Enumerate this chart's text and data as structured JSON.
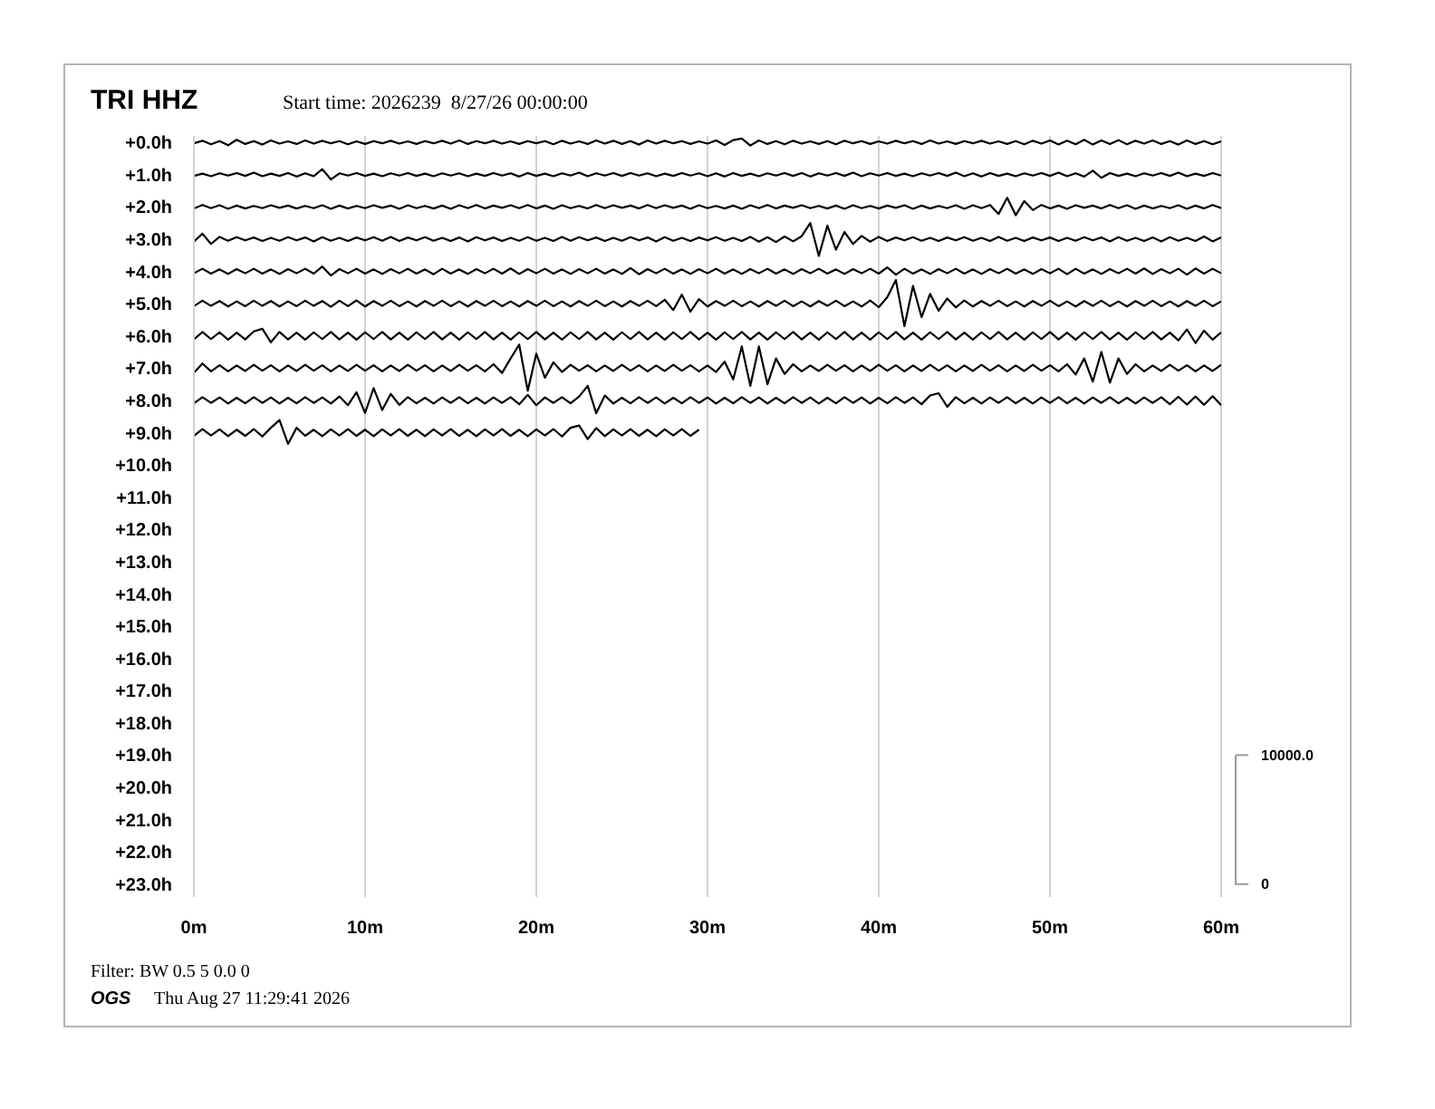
{
  "chart_data": {
    "type": "line",
    "title": "TRI HHZ",
    "subtitle": "Start time: 2026239  8/27/26 00:00:00",
    "annotations": [
      "Filter: BW 0.5 5 0.0 0",
      "OGS",
      "Thu Aug 27 11:29:41 2026"
    ],
    "x": [
      0,
      0.5,
      1,
      1.5,
      2,
      2.5,
      3,
      3.5,
      4,
      4.5,
      5,
      5.5,
      6,
      6.5,
      7,
      7.5,
      8,
      8.5,
      9,
      9.5,
      10,
      10.5,
      11,
      11.5,
      12,
      12.5,
      13,
      13.5,
      14,
      14.5,
      15,
      15.5,
      16,
      16.5,
      17,
      17.5,
      18,
      18.5,
      19,
      19.5,
      20,
      20.5,
      21,
      21.5,
      22,
      22.5,
      23,
      23.5,
      24,
      24.5,
      25,
      25.5,
      26,
      26.5,
      27,
      27.5,
      28,
      28.5,
      29,
      29.5,
      30,
      30.5,
      31,
      31.5,
      32,
      32.5,
      33,
      33.5,
      34,
      34.5,
      35,
      35.5,
      36,
      36.5,
      37,
      37.5,
      38,
      38.5,
      39,
      39.5,
      40,
      40.5,
      41,
      41.5,
      42,
      42.5,
      43,
      43.5,
      44,
      44.5,
      45,
      45.5,
      46,
      46.5,
      47,
      47.5,
      48,
      48.5,
      49,
      49.5,
      50,
      50.5,
      51,
      51.5,
      52,
      52.5,
      53,
      53.5,
      54,
      54.5,
      55,
      55.5,
      56,
      56.5,
      57,
      57.5,
      58,
      58.5,
      59,
      59.5,
      60
    ],
    "series": [
      {
        "color": "#000000",
        "values": [
          0.03,
          -0.05,
          0.06,
          -0.04,
          0.09,
          -0.08,
          0.05,
          -0.04,
          0.07,
          -0.06,
          0.04,
          -0.03,
          0.05,
          -0.06,
          0.04,
          -0.05,
          0.03,
          -0.04,
          0.06,
          -0.03,
          0.05,
          -0.04,
          0.03,
          -0.05,
          0.04,
          -0.03,
          0.05,
          -0.04,
          0.03,
          -0.05,
          0.04,
          -0.06,
          0.05,
          -0.04,
          0.03,
          -0.05,
          0.04,
          -0.03,
          0.05,
          -0.04,
          0.03,
          -0.04,
          0.06,
          -0.05,
          0.04,
          -0.03,
          0.05,
          -0.06,
          0.04,
          -0.05,
          0.05,
          -0.04,
          0.07,
          -0.06,
          0.04,
          -0.05,
          0.03,
          -0.04,
          0.05,
          -0.03,
          0.04,
          -0.06,
          0.08,
          -0.07,
          -0.12,
          0.1,
          -0.06,
          0.05,
          -0.04,
          0.06,
          -0.05,
          0.04,
          -0.03,
          0.05,
          -0.04,
          0.06,
          -0.05,
          0.03,
          -0.04,
          0.05,
          -0.03,
          0.04,
          -0.05,
          0.03,
          -0.04,
          0.05,
          -0.06,
          0.04,
          -0.03,
          0.05,
          -0.04,
          0.03,
          -0.05,
          0.04,
          -0.03,
          0.05,
          -0.04,
          0.06,
          -0.05,
          0.04,
          -0.06,
          0.07,
          -0.05,
          0.06,
          -0.08,
          0.07,
          -0.06,
          0.05,
          -0.07,
          0.06,
          -0.05,
          0.04,
          -0.06,
          0.05,
          -0.04,
          0.07,
          -0.06,
          0.05,
          -0.04,
          0.06,
          -0.03
        ]
      },
      {
        "color": "#000000",
        "values": [
          1.04,
          0.97,
          1.05,
          0.96,
          1.03,
          0.95,
          1.04,
          0.94,
          1.05,
          0.97,
          1.04,
          0.95,
          1.06,
          0.96,
          1.05,
          0.83,
          1.15,
          0.96,
          1.03,
          0.95,
          1.04,
          0.97,
          1.05,
          0.96,
          1.03,
          0.95,
          1.04,
          0.97,
          1.05,
          0.96,
          1.03,
          0.96,
          1.05,
          0.97,
          1.04,
          0.95,
          1.03,
          0.96,
          1.06,
          0.95,
          1.04,
          0.97,
          1.05,
          0.96,
          1.03,
          0.94,
          1.05,
          0.96,
          1.03,
          0.95,
          1.04,
          0.95,
          1.03,
          0.96,
          1.05,
          0.97,
          1.04,
          0.95,
          1.03,
          0.96,
          1.05,
          0.96,
          1.06,
          0.95,
          1.04,
          0.97,
          1.05,
          0.96,
          1.03,
          0.95,
          1.04,
          0.95,
          1.06,
          0.96,
          1.03,
          0.95,
          1.04,
          0.94,
          1.05,
          0.96,
          1.03,
          0.95,
          1.04,
          0.97,
          1.05,
          0.96,
          1.03,
          0.95,
          1.04,
          0.94,
          1.05,
          0.96,
          1.06,
          0.95,
          1.04,
          0.97,
          1.05,
          0.96,
          1.03,
          0.95,
          1.04,
          0.94,
          1.05,
          0.96,
          1.06,
          0.88,
          1.1,
          0.95,
          1.04,
          0.97,
          1.05,
          0.96,
          1.03,
          0.95,
          1.04,
          0.94,
          1.05,
          0.97,
          1.04,
          0.95,
          1.03
        ]
      },
      {
        "color": "#000000",
        "values": [
          2.05,
          1.94,
          2.04,
          1.95,
          2.06,
          1.96,
          2.05,
          1.97,
          2.04,
          1.95,
          2.03,
          1.96,
          2.05,
          1.97,
          2.04,
          1.95,
          2.06,
          1.96,
          2.05,
          1.97,
          2.04,
          1.95,
          2.03,
          1.96,
          2.06,
          1.95,
          2.04,
          1.97,
          2.05,
          1.96,
          2.06,
          1.95,
          2.04,
          1.94,
          2.05,
          1.96,
          2.03,
          1.95,
          2.04,
          1.94,
          2.05,
          1.96,
          2.06,
          1.95,
          2.04,
          1.97,
          2.05,
          1.94,
          2.04,
          1.95,
          2.03,
          1.96,
          2.05,
          1.94,
          2.04,
          1.95,
          2.03,
          1.96,
          2.06,
          1.95,
          2.04,
          1.97,
          2.05,
          1.96,
          2.06,
          1.95,
          2.04,
          1.94,
          2.05,
          1.96,
          2.03,
          1.95,
          2.04,
          1.97,
          2.05,
          1.96,
          2.06,
          1.95,
          2.04,
          1.97,
          2.05,
          1.96,
          2.03,
          1.95,
          2.06,
          1.96,
          2.05,
          1.97,
          2.04,
          1.95,
          2.06,
          1.95,
          2.04,
          1.94,
          2.22,
          1.72,
          2.26,
          1.82,
          2.1,
          1.94,
          2.05,
          1.96,
          2.06,
          1.95,
          2.03,
          1.96,
          2.05,
          1.94,
          2.04,
          1.95,
          2.06,
          1.96,
          2.05,
          1.97,
          2.04,
          1.95,
          2.06,
          1.96,
          2.05,
          1.94,
          2.04
        ]
      },
      {
        "color": "#000000",
        "values": [
          3.08,
          2.83,
          3.15,
          2.93,
          3.05,
          2.94,
          3.04,
          2.95,
          3.06,
          2.96,
          3.05,
          2.94,
          3.04,
          2.95,
          3.07,
          2.94,
          3.05,
          2.96,
          3.06,
          2.95,
          3.04,
          2.94,
          3.05,
          2.93,
          3.06,
          2.95,
          3.04,
          2.94,
          3.05,
          2.96,
          3.06,
          2.95,
          3.07,
          2.94,
          3.04,
          2.95,
          3.06,
          2.96,
          3.05,
          2.94,
          3.05,
          2.96,
          3.06,
          2.93,
          3.05,
          2.94,
          3.04,
          2.95,
          3.06,
          2.96,
          3.05,
          2.94,
          3.04,
          2.95,
          3.07,
          2.94,
          3.05,
          2.96,
          3.06,
          2.95,
          3.04,
          2.94,
          3.05,
          2.96,
          3.06,
          2.93,
          3.08,
          2.94,
          3.09,
          2.92,
          3.07,
          2.91,
          2.5,
          3.52,
          2.58,
          3.33,
          2.78,
          3.15,
          2.9,
          3.08,
          2.93,
          3.06,
          2.95,
          3.04,
          2.94,
          3.05,
          2.96,
          3.06,
          2.95,
          3.04,
          2.94,
          3.05,
          2.96,
          3.06,
          2.93,
          3.05,
          2.96,
          3.06,
          2.95,
          3.04,
          2.95,
          3.06,
          2.96,
          3.05,
          2.94,
          3.04,
          2.95,
          3.07,
          2.94,
          3.05,
          2.96,
          3.06,
          2.95,
          3.07,
          2.94,
          3.05,
          2.96,
          3.06,
          2.92,
          3.07,
          2.95
        ]
      },
      {
        "color": "#000000",
        "values": [
          4.06,
          3.92,
          4.07,
          3.94,
          4.08,
          3.93,
          4.06,
          3.92,
          4.07,
          3.94,
          4.08,
          3.93,
          4.06,
          3.92,
          4.07,
          3.85,
          4.13,
          3.93,
          4.06,
          3.92,
          4.07,
          3.94,
          4.08,
          3.93,
          4.06,
          3.92,
          4.07,
          3.94,
          4.09,
          3.92,
          4.07,
          3.94,
          4.08,
          3.93,
          4.06,
          3.92,
          4.07,
          3.91,
          4.08,
          3.93,
          4.06,
          3.92,
          4.07,
          3.94,
          4.08,
          3.93,
          4.06,
          3.92,
          4.07,
          3.94,
          4.08,
          3.9,
          4.09,
          3.93,
          4.06,
          3.92,
          4.07,
          3.94,
          4.08,
          3.93,
          4.06,
          3.92,
          4.07,
          3.94,
          4.08,
          3.93,
          4.06,
          3.92,
          4.07,
          3.94,
          4.08,
          3.93,
          4.06,
          3.92,
          4.07,
          3.94,
          4.08,
          3.93,
          4.06,
          3.92,
          4.07,
          3.88,
          4.1,
          3.92,
          4.07,
          3.94,
          4.08,
          3.93,
          4.06,
          3.92,
          4.07,
          3.94,
          4.08,
          3.93,
          4.06,
          3.92,
          4.07,
          3.94,
          4.08,
          3.93,
          4.06,
          3.92,
          4.09,
          3.92,
          4.07,
          3.94,
          4.08,
          3.93,
          4.06,
          3.92,
          4.07,
          3.91,
          4.08,
          3.93,
          4.06,
          3.92,
          4.1,
          3.91,
          4.07,
          3.92,
          4.06
        ]
      },
      {
        "color": "#000000",
        "values": [
          5.08,
          4.91,
          5.07,
          4.92,
          5.09,
          4.93,
          5.08,
          4.91,
          5.07,
          4.92,
          5.09,
          4.93,
          5.08,
          4.91,
          5.07,
          4.92,
          5.1,
          4.91,
          5.08,
          4.9,
          5.09,
          4.92,
          5.07,
          4.91,
          5.08,
          4.93,
          5.09,
          4.92,
          5.07,
          4.91,
          5.08,
          4.93,
          5.09,
          4.92,
          5.07,
          4.91,
          5.08,
          4.93,
          5.09,
          4.92,
          5.07,
          4.91,
          5.08,
          4.93,
          5.09,
          4.92,
          5.07,
          4.91,
          5.08,
          4.93,
          5.09,
          4.92,
          5.07,
          4.91,
          5.08,
          4.88,
          5.2,
          4.72,
          5.25,
          4.86,
          5.09,
          4.92,
          5.07,
          4.91,
          5.08,
          4.93,
          5.09,
          4.92,
          5.07,
          4.91,
          5.08,
          4.93,
          5.09,
          4.92,
          5.07,
          4.91,
          5.08,
          4.93,
          5.09,
          4.9,
          5.11,
          4.8,
          4.27,
          5.7,
          4.45,
          5.42,
          4.7,
          5.22,
          4.84,
          5.12,
          4.9,
          5.09,
          4.92,
          5.07,
          4.91,
          5.08,
          4.93,
          5.09,
          4.92,
          5.07,
          4.91,
          5.08,
          4.93,
          5.09,
          4.92,
          5.07,
          4.91,
          5.08,
          4.93,
          5.09,
          4.92,
          5.07,
          4.91,
          5.08,
          4.93,
          5.09,
          4.92,
          5.07,
          4.91,
          5.08,
          4.93
        ]
      },
      {
        "color": "#000000",
        "values": [
          6.11,
          5.88,
          6.1,
          5.89,
          6.12,
          5.9,
          6.11,
          5.86,
          5.78,
          6.2,
          5.88,
          6.11,
          5.9,
          6.12,
          5.89,
          6.1,
          5.88,
          6.11,
          5.9,
          6.12,
          5.89,
          6.1,
          5.88,
          6.11,
          5.9,
          6.12,
          5.89,
          6.1,
          5.88,
          6.11,
          5.9,
          6.12,
          5.89,
          6.1,
          5.88,
          6.11,
          5.9,
          6.12,
          5.89,
          6.1,
          5.88,
          6.11,
          5.9,
          6.12,
          5.89,
          6.1,
          5.88,
          6.11,
          5.9,
          6.12,
          5.89,
          6.1,
          5.88,
          6.11,
          5.9,
          6.12,
          5.89,
          6.1,
          5.88,
          6.11,
          5.9,
          6.12,
          5.89,
          6.1,
          5.88,
          6.11,
          5.9,
          6.12,
          5.89,
          6.1,
          5.88,
          6.11,
          5.9,
          6.12,
          5.89,
          6.1,
          5.88,
          6.11,
          5.9,
          6.12,
          5.89,
          6.1,
          5.88,
          6.11,
          5.9,
          6.12,
          5.89,
          6.1,
          5.88,
          6.11,
          5.9,
          6.12,
          5.89,
          6.1,
          5.88,
          6.11,
          5.9,
          6.12,
          5.89,
          6.1,
          5.88,
          6.11,
          5.9,
          6.12,
          5.89,
          6.1,
          5.88,
          6.11,
          5.9,
          6.12,
          5.89,
          6.1,
          5.88,
          6.11,
          5.9,
          6.14,
          5.8,
          6.22,
          5.84,
          6.12,
          5.89
        ]
      },
      {
        "color": "#000000",
        "values": [
          7.15,
          6.86,
          7.1,
          6.91,
          7.1,
          6.92,
          7.09,
          6.9,
          7.08,
          6.91,
          7.1,
          6.92,
          7.09,
          6.9,
          7.08,
          6.91,
          7.1,
          6.92,
          7.09,
          6.9,
          7.08,
          6.91,
          7.1,
          6.92,
          7.09,
          6.9,
          7.08,
          6.91,
          7.1,
          6.92,
          7.09,
          6.9,
          7.08,
          6.91,
          7.1,
          6.88,
          7.15,
          6.7,
          6.27,
          7.7,
          6.55,
          7.3,
          6.82,
          7.12,
          6.9,
          7.08,
          6.91,
          7.1,
          6.92,
          7.09,
          6.9,
          7.08,
          6.91,
          7.1,
          6.92,
          7.09,
          6.9,
          7.08,
          6.91,
          7.1,
          6.92,
          7.12,
          6.8,
          7.35,
          6.33,
          7.55,
          6.33,
          7.5,
          6.7,
          7.18,
          6.88,
          7.1,
          6.92,
          7.09,
          6.9,
          7.08,
          6.91,
          7.1,
          6.92,
          7.09,
          6.9,
          7.08,
          6.91,
          7.1,
          6.92,
          7.09,
          6.9,
          7.08,
          6.91,
          7.1,
          6.92,
          7.09,
          6.9,
          7.08,
          6.91,
          7.1,
          6.92,
          7.09,
          6.9,
          7.08,
          6.91,
          7.1,
          6.88,
          7.2,
          6.7,
          7.42,
          6.5,
          7.45,
          6.7,
          7.18,
          6.88,
          7.1,
          6.92,
          7.09,
          6.9,
          7.08,
          6.91,
          7.1,
          6.92,
          7.09,
          6.9
        ]
      },
      {
        "color": "#000000",
        "values": [
          8.09,
          7.9,
          8.08,
          7.91,
          8.1,
          7.92,
          8.09,
          7.9,
          8.08,
          7.91,
          8.1,
          7.92,
          8.09,
          7.9,
          8.08,
          7.91,
          8.1,
          7.88,
          8.15,
          7.75,
          8.39,
          7.62,
          8.3,
          7.8,
          8.14,
          7.9,
          8.09,
          7.92,
          8.1,
          7.91,
          8.08,
          7.9,
          8.09,
          7.92,
          8.1,
          7.91,
          8.08,
          7.9,
          8.12,
          7.83,
          8.15,
          7.91,
          8.08,
          7.9,
          8.09,
          7.88,
          7.55,
          8.4,
          7.85,
          8.1,
          7.92,
          8.09,
          7.9,
          8.08,
          7.91,
          8.1,
          7.92,
          8.09,
          7.9,
          8.08,
          7.91,
          8.1,
          7.92,
          8.09,
          7.9,
          8.08,
          7.91,
          8.1,
          7.92,
          8.09,
          7.9,
          8.08,
          7.91,
          8.1,
          7.92,
          8.09,
          7.9,
          8.08,
          7.91,
          8.1,
          7.92,
          8.09,
          7.9,
          8.08,
          7.91,
          8.12,
          7.85,
          7.78,
          8.2,
          7.9,
          8.09,
          7.92,
          8.1,
          7.91,
          8.08,
          7.9,
          8.09,
          7.92,
          8.1,
          7.91,
          8.08,
          7.9,
          8.09,
          7.92,
          8.1,
          7.91,
          8.08,
          7.9,
          8.09,
          7.92,
          8.1,
          7.91,
          8.08,
          7.9,
          8.12,
          7.89,
          8.13,
          7.88,
          8.14,
          7.87,
          8.15
        ]
      },
      {
        "color": "#000000",
        "x": [
          0,
          0.5,
          1,
          1.5,
          2,
          2.5,
          3,
          3.5,
          4,
          4.5,
          5,
          5.5,
          6,
          6.5,
          7,
          7.5,
          8,
          8.5,
          9,
          9.5,
          10,
          10.5,
          11,
          11.5,
          12,
          12.5,
          13,
          13.5,
          14,
          14.5,
          15,
          15.5,
          16,
          16.5,
          17,
          17.5,
          18,
          18.5,
          19,
          19.5,
          20,
          20.5,
          21,
          21.5,
          22,
          22.5,
          23,
          23.5,
          24,
          24.5,
          25,
          25.5,
          26,
          26.5,
          27,
          27.5,
          28,
          28.5,
          29,
          29.5
        ],
        "values": [
          9.1,
          8.89,
          9.09,
          8.9,
          9.11,
          8.91,
          9.1,
          8.89,
          9.12,
          8.85,
          8.61,
          9.35,
          8.85,
          9.1,
          8.91,
          9.11,
          8.9,
          9.09,
          8.89,
          9.1,
          8.91,
          9.11,
          8.9,
          9.09,
          8.89,
          9.1,
          8.91,
          9.11,
          8.9,
          9.09,
          8.89,
          9.1,
          8.91,
          9.11,
          8.9,
          9.09,
          8.89,
          9.1,
          8.91,
          9.11,
          8.9,
          9.09,
          8.89,
          9.12,
          8.85,
          8.78,
          9.2,
          8.86,
          9.11,
          8.9,
          9.09,
          8.89,
          9.1,
          8.91,
          9.11,
          8.9,
          9.09,
          8.89,
          9.1,
          8.91
        ]
      }
    ],
    "xlim": [
      0,
      60
    ],
    "xticks": [
      {
        "value": 0,
        "label": "0m"
      },
      {
        "value": 10,
        "label": "10m"
      },
      {
        "value": 20,
        "label": "20m"
      },
      {
        "value": 30,
        "label": "30m"
      },
      {
        "value": 40,
        "label": "40m"
      },
      {
        "value": 50,
        "label": "50m"
      },
      {
        "value": 60,
        "label": "60m"
      }
    ],
    "ylim": [
      23.4,
      -0.2
    ],
    "yticks": [
      {
        "value": 0,
        "label": "+0.0h"
      },
      {
        "value": 1,
        "label": "+1.0h"
      },
      {
        "value": 2,
        "label": "+2.0h"
      },
      {
        "value": 3,
        "label": "+3.0h"
      },
      {
        "value": 4,
        "label": "+4.0h"
      },
      {
        "value": 5,
        "label": "+5.0h"
      },
      {
        "value": 6,
        "label": "+6.0h"
      },
      {
        "value": 7,
        "label": "+7.0h"
      },
      {
        "value": 8,
        "label": "+8.0h"
      },
      {
        "value": 9,
        "label": "+9.0h"
      },
      {
        "value": 10,
        "label": "+10.0h"
      },
      {
        "value": 11,
        "label": "+11.0h"
      },
      {
        "value": 12,
        "label": "+12.0h"
      },
      {
        "value": 13,
        "label": "+13.0h"
      },
      {
        "value": 14,
        "label": "+14.0h"
      },
      {
        "value": 15,
        "label": "+15.0h"
      },
      {
        "value": 16,
        "label": "+16.0h"
      },
      {
        "value": 17,
        "label": "+17.0h"
      },
      {
        "value": 18,
        "label": "+18.0h"
      },
      {
        "value": 19,
        "label": "+19.0h"
      },
      {
        "value": 20,
        "label": "+20.0h"
      },
      {
        "value": 21,
        "label": "+21.0h"
      },
      {
        "value": 22,
        "label": "+22.0h"
      },
      {
        "value": 23,
        "label": "+23.0h"
      }
    ],
    "y2lim": [
      -1000,
      58000
    ],
    "y2ticks": [
      0,
      {
        "value": 10000,
        "label": "10000.0"
      }
    ],
    "grid": "x"
  }
}
